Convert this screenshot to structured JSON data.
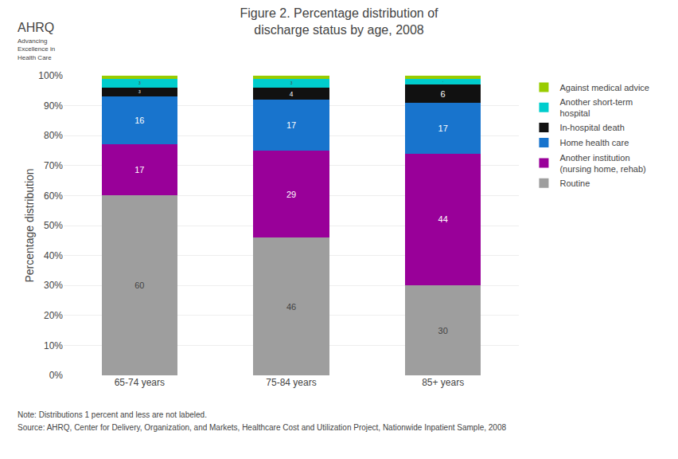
{
  "chart_data": {
    "type": "bar",
    "stacked": true,
    "title": "Figure 2. Percentage distribution of\ndischarge status by age, 2008",
    "ylabel": "Percentage distribution",
    "categories": [
      "65-74 years",
      "75-84 years",
      "85+ years"
    ],
    "series": [
      {
        "name": "Routine",
        "values": [
          60,
          46,
          30
        ],
        "color": "#9E9E9E"
      },
      {
        "name": "Another institution\n(nursing home, rehab)",
        "values": [
          17,
          29,
          44
        ],
        "color": "#990099"
      },
      {
        "name": "Home health care",
        "values": [
          16,
          17,
          17
        ],
        "color": "#1874CD"
      },
      {
        "name": "In-hospital death",
        "values": [
          3,
          4,
          6
        ],
        "color": "#111111"
      },
      {
        "name": "Another short-term\nhospital",
        "values": [
          3,
          3,
          2
        ],
        "color": "#00CDCD"
      },
      {
        "name": "Against medical advice",
        "values": [
          1,
          1,
          1
        ],
        "value_labels": [
          null,
          null,
          null
        ],
        "color": "#99CC00"
      }
    ],
    "data_labels": true,
    "ylim": [
      0,
      100
    ],
    "yticks": [
      {
        "value": 0,
        "label": "0%"
      },
      {
        "value": 10,
        "label": "10%"
      },
      {
        "value": 20,
        "label": "20%"
      },
      {
        "value": 30,
        "label": "30%"
      },
      {
        "value": 40,
        "label": "40%"
      },
      {
        "value": 50,
        "label": "50%"
      },
      {
        "value": 60,
        "label": "60%"
      },
      {
        "value": 70,
        "label": "70%"
      },
      {
        "value": 80,
        "label": "80%"
      },
      {
        "value": 90,
        "label": "90%"
      },
      {
        "value": 100,
        "label": "100%"
      }
    ],
    "grid": true,
    "legend": "right",
    "annotations": [
      {
        "text": "AHRQ"
      },
      {
        "text": "Advancing\nExcellence in\nHealth Care"
      },
      {
        "text": "Note: Distributions 1 percent and less are not labeled."
      },
      {
        "text": "Source: AHRQ, Center for Delivery, Organization, and Markets, Healthcare Cost and Utilization Project, Nationwide Inpatient Sample, 2008"
      }
    ]
  }
}
